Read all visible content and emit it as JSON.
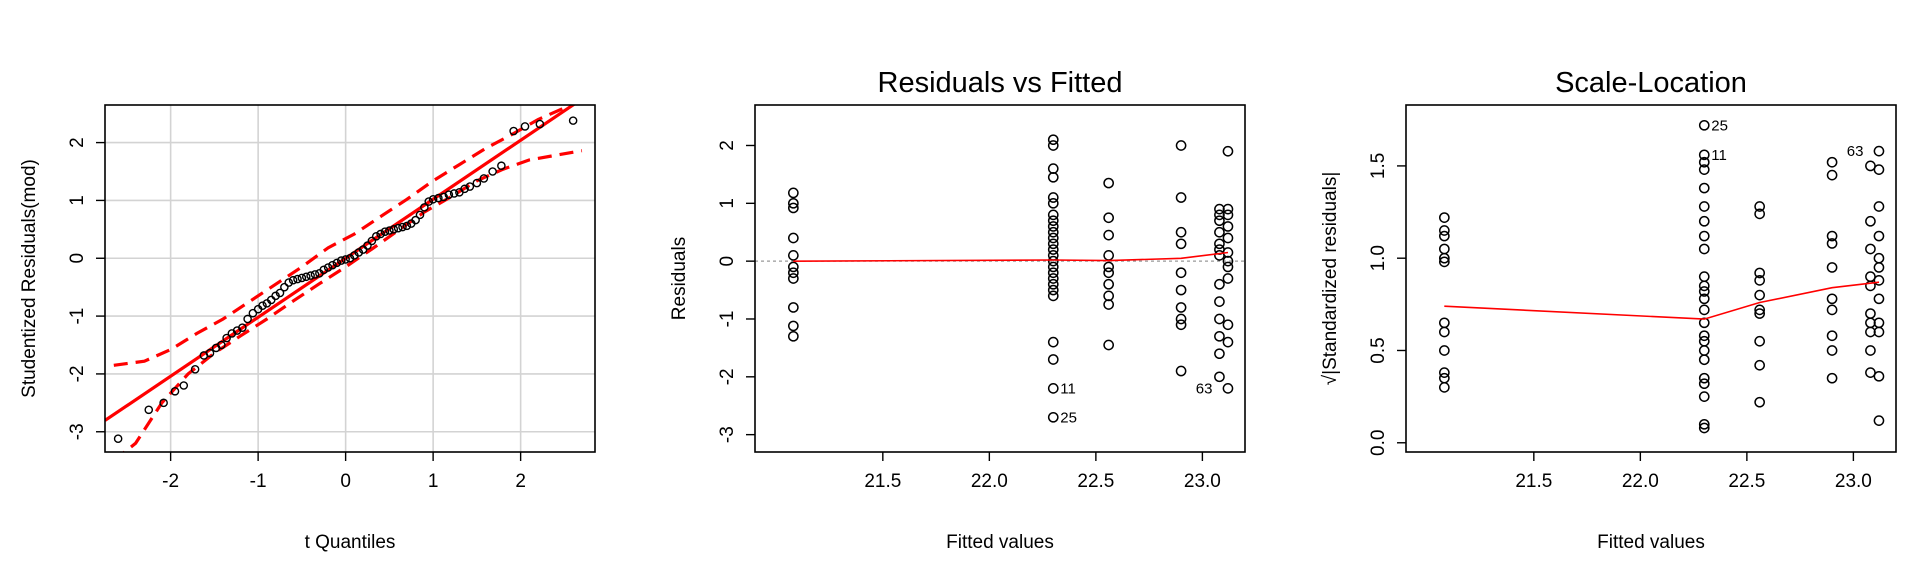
{
  "chart_data": [
    {
      "type": "scatter",
      "title": "",
      "xlabel": "t Quantiles",
      "ylabel": "Studentized Residuals(mod)",
      "xlim": [
        -2.75,
        2.85
      ],
      "ylim": [
        -3.35,
        2.65
      ],
      "grid": true,
      "xticks": [
        -2,
        -1,
        0,
        1,
        2
      ],
      "yticks": [
        -3,
        -2,
        -1,
        0,
        1,
        2
      ],
      "xtick_labels": [
        "-2",
        "-1",
        "0",
        "1",
        "2"
      ],
      "ytick_labels": [
        "-3",
        "-2",
        "-1",
        "0",
        "1",
        "2"
      ],
      "points": {
        "x": [
          -2.6,
          -2.25,
          -2.08,
          -1.95,
          -1.85,
          -1.72,
          -1.62,
          -1.55,
          -1.48,
          -1.42,
          -1.36,
          -1.3,
          -1.24,
          -1.18,
          -1.12,
          -1.06,
          -1.0,
          -0.95,
          -0.9,
          -0.85,
          -0.8,
          -0.75,
          -0.7,
          -0.65,
          -0.6,
          -0.55,
          -0.5,
          -0.45,
          -0.4,
          -0.35,
          -0.3,
          -0.25,
          -0.2,
          -0.15,
          -0.1,
          -0.05,
          0.0,
          0.05,
          0.1,
          0.15,
          0.2,
          0.25,
          0.3,
          0.35,
          0.4,
          0.45,
          0.5,
          0.55,
          0.6,
          0.65,
          0.7,
          0.75,
          0.8,
          0.85,
          0.9,
          0.95,
          1.0,
          1.06,
          1.12,
          1.18,
          1.24,
          1.3,
          1.36,
          1.42,
          1.5,
          1.58,
          1.68,
          1.78,
          1.92,
          2.05,
          2.22,
          2.6
        ],
        "y": [
          -3.12,
          -2.62,
          -2.5,
          -2.3,
          -2.2,
          -1.92,
          -1.68,
          -1.64,
          -1.55,
          -1.5,
          -1.38,
          -1.3,
          -1.25,
          -1.2,
          -1.05,
          -0.95,
          -0.88,
          -0.82,
          -0.78,
          -0.72,
          -0.65,
          -0.6,
          -0.5,
          -0.42,
          -0.38,
          -0.36,
          -0.34,
          -0.32,
          -0.3,
          -0.28,
          -0.26,
          -0.2,
          -0.16,
          -0.12,
          -0.08,
          -0.04,
          -0.02,
          0.0,
          0.05,
          0.1,
          0.15,
          0.22,
          0.3,
          0.38,
          0.42,
          0.46,
          0.48,
          0.5,
          0.52,
          0.54,
          0.56,
          0.6,
          0.66,
          0.75,
          0.88,
          0.98,
          1.02,
          1.04,
          1.06,
          1.1,
          1.12,
          1.14,
          1.2,
          1.24,
          1.3,
          1.38,
          1.5,
          1.6,
          2.2,
          2.28,
          2.32,
          2.38
        ]
      },
      "reference_line": {
        "intercept": 0.0,
        "slope": 1.02,
        "color": "#ff0000"
      },
      "confidence_band": {
        "color": "#ff0000",
        "upper": {
          "x": [
            -2.65,
            -2.3,
            -2.0,
            -1.7,
            -1.4,
            -1.1,
            -0.8,
            -0.5,
            -0.2,
            0.1,
            0.4,
            0.7,
            1.0,
            1.3,
            1.6,
            1.9,
            2.2,
            2.5,
            2.7
          ],
          "y": [
            -1.85,
            -1.78,
            -1.58,
            -1.3,
            -1.05,
            -0.75,
            -0.45,
            -0.15,
            0.18,
            0.42,
            0.72,
            1.02,
            1.34,
            1.62,
            1.9,
            2.14,
            2.4,
            2.6,
            2.75
          ]
        },
        "lower": {
          "x": [
            -2.65,
            -2.4,
            -2.1,
            -1.8,
            -1.5,
            -1.2,
            -0.9,
            -0.6,
            -0.3,
            0.0,
            0.3,
            0.6,
            0.9,
            1.2,
            1.5,
            1.8,
            2.1,
            2.4,
            2.7
          ],
          "y": [
            -3.5,
            -3.2,
            -2.5,
            -2.0,
            -1.64,
            -1.34,
            -1.05,
            -0.74,
            -0.44,
            -0.15,
            0.16,
            0.48,
            0.8,
            1.06,
            1.34,
            1.54,
            1.7,
            1.78,
            1.86
          ]
        }
      }
    },
    {
      "type": "scatter",
      "title": "Residuals vs Fitted",
      "xlabel": "Fitted values",
      "ylabel": "Residuals",
      "xlim": [
        20.9,
        23.2
      ],
      "ylim": [
        -3.3,
        2.7
      ],
      "xticks": [
        21.5,
        22.0,
        22.5,
        23.0
      ],
      "yticks": [
        -3,
        -2,
        -1,
        0,
        1,
        2
      ],
      "xtick_labels": [
        "21.5",
        "22.0",
        "22.5",
        "23.0"
      ],
      "ytick_labels": [
        "-3",
        "-2",
        "-1",
        "0",
        "1",
        "2"
      ],
      "zero_line": {
        "y": 0,
        "color": "#999999"
      },
      "groups": [
        {
          "x": 21.08,
          "y": [
            1.18,
            1.0,
            0.92,
            0.4,
            0.1,
            -0.1,
            -0.2,
            -0.3,
            -0.8,
            -1.12,
            -1.3
          ]
        },
        {
          "x": 22.3,
          "y": [
            2.1,
            2.0,
            1.6,
            1.45,
            1.1,
            1.0,
            0.8,
            0.7,
            0.6,
            0.5,
            0.4,
            0.3,
            0.2,
            0.1,
            0.0,
            -0.1,
            -0.2,
            -0.3,
            -0.4,
            -0.5,
            -0.6,
            -1.4,
            -1.7,
            -2.2,
            -2.7
          ]
        },
        {
          "x": 22.56,
          "y": [
            1.35,
            0.75,
            0.45,
            0.1,
            -0.1,
            -0.2,
            -0.4,
            -0.6,
            -0.75,
            -1.45
          ]
        },
        {
          "x": 22.9,
          "y": [
            2.0,
            1.1,
            0.5,
            0.3,
            -0.2,
            -0.5,
            -0.8,
            -1.0,
            -1.1,
            -1.9
          ]
        },
        {
          "x": 23.08,
          "y": [
            0.9,
            0.8,
            0.7,
            0.5,
            0.3,
            0.2,
            0.1,
            -0.4,
            -0.7,
            -1.0,
            -1.3,
            -1.6,
            -2.0
          ]
        },
        {
          "x": 23.12,
          "y": [
            1.9,
            0.9,
            0.8,
            0.6,
            0.4,
            0.15,
            0.0,
            -0.1,
            -0.3,
            -1.1,
            -1.4,
            -2.2
          ]
        }
      ],
      "point_labels": [
        {
          "text": "11",
          "x": 22.3,
          "y": -2.2
        },
        {
          "text": "25",
          "x": 22.3,
          "y": -2.7
        },
        {
          "text": "63",
          "x": 23.08,
          "y": -2.2
        }
      ],
      "smooth_line": {
        "x": [
          21.08,
          22.3,
          22.56,
          22.9,
          23.12
        ],
        "y": [
          0.0,
          0.02,
          0.01,
          0.05,
          0.15
        ],
        "color": "#ff0000"
      }
    },
    {
      "type": "scatter",
      "title": "Scale-Location",
      "xlabel": "Fitted values",
      "ylabel": "√|Standardized residuals|",
      "xlim": [
        20.9,
        23.2
      ],
      "ylim": [
        -0.05,
        1.83
      ],
      "xticks": [
        21.5,
        22.0,
        22.5,
        23.0
      ],
      "yticks": [
        0.0,
        0.5,
        1.0,
        1.5
      ],
      "xtick_labels": [
        "21.5",
        "22.0",
        "22.5",
        "23.0"
      ],
      "ytick_labels": [
        "0.0",
        "0.5",
        "1.0",
        "1.5"
      ],
      "groups": [
        {
          "x": 21.08,
          "y": [
            1.22,
            1.15,
            1.12,
            1.05,
            1.0,
            0.98,
            0.65,
            0.6,
            0.5,
            0.38,
            0.35,
            0.3
          ]
        },
        {
          "x": 22.3,
          "y": [
            1.72,
            1.56,
            1.52,
            1.48,
            1.38,
            1.28,
            1.2,
            1.12,
            1.05,
            0.9,
            0.85,
            0.82,
            0.78,
            0.72,
            0.65,
            0.58,
            0.55,
            0.5,
            0.45,
            0.35,
            0.32,
            0.25,
            0.1,
            0.08
          ]
        },
        {
          "x": 22.56,
          "y": [
            1.28,
            1.24,
            0.92,
            0.88,
            0.8,
            0.72,
            0.7,
            0.55,
            0.42,
            0.22
          ]
        },
        {
          "x": 22.9,
          "y": [
            1.52,
            1.45,
            1.12,
            1.08,
            0.95,
            0.78,
            0.72,
            0.58,
            0.5,
            0.35
          ]
        },
        {
          "x": 23.08,
          "y": [
            1.5,
            1.2,
            1.05,
            0.9,
            0.85,
            0.7,
            0.65,
            0.6,
            0.5,
            0.38
          ]
        },
        {
          "x": 23.12,
          "y": [
            1.58,
            1.48,
            1.28,
            1.12,
            1.0,
            0.95,
            0.88,
            0.78,
            0.65,
            0.6,
            0.36,
            0.12
          ]
        }
      ],
      "point_labels": [
        {
          "text": "25",
          "x": 22.3,
          "y": 1.72
        },
        {
          "text": "11",
          "x": 22.3,
          "y": 1.56
        },
        {
          "text": "63",
          "x": 23.08,
          "y": 1.58
        }
      ],
      "smooth_line": {
        "x": [
          21.08,
          22.3,
          22.56,
          22.9,
          23.12
        ],
        "y": [
          0.74,
          0.67,
          0.76,
          0.84,
          0.87
        ],
        "color": "#ff0000"
      }
    }
  ]
}
